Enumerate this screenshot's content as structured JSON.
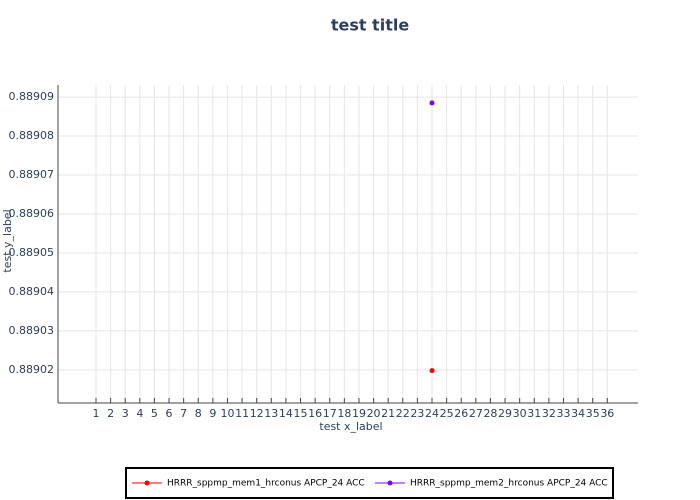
{
  "chart_data": {
    "type": "line",
    "title": "test title",
    "x_label": "test x_label",
    "y_label": "test y_label",
    "x": [
      24
    ],
    "series": [
      {
        "name": "HRRR_sppmp_mem1_hrconus APCP_24 ACC",
        "color": "#ff0000",
        "values": [
          0.8890198
        ]
      },
      {
        "name": "HRRR_sppmp_mem2_hrconus APCP_24 ACC",
        "color": "#8000ff",
        "values": [
          0.8890885
        ]
      }
    ],
    "xlim": [
      -1.6,
      38.1
    ],
    "xticks": [
      1,
      2,
      3,
      4,
      5,
      6,
      7,
      8,
      9,
      10,
      11,
      12,
      13,
      14,
      15,
      16,
      17,
      18,
      19,
      20,
      21,
      22,
      23,
      24,
      25,
      26,
      27,
      28,
      29,
      30,
      31,
      32,
      33,
      34,
      35,
      36
    ],
    "ylim": [
      0.8890115,
      0.8890931
    ],
    "yticks": [
      0.88902,
      0.88903,
      0.88904,
      0.88905,
      0.88906,
      0.88907,
      0.88908,
      0.88909
    ],
    "grid": true,
    "legend": "bottom"
  }
}
